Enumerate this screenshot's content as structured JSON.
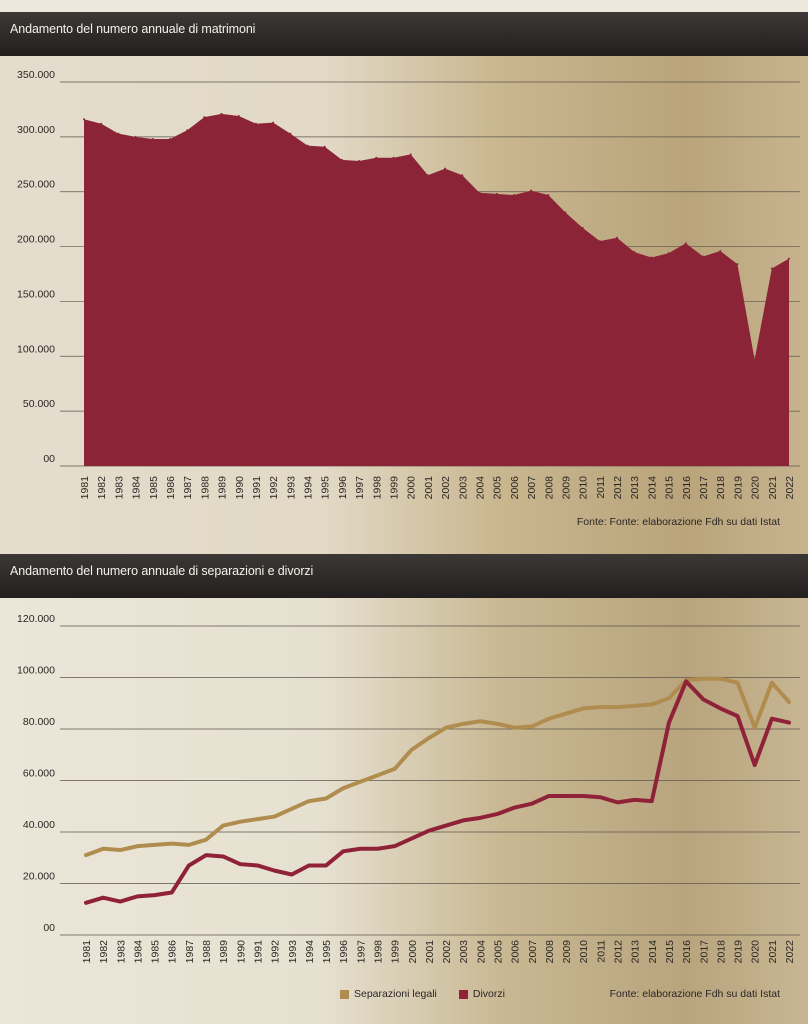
{
  "chart1": {
    "header": "Andamento del numero annuale di matrimoni",
    "source": "Fonte: Fonte: elaborazione Fdh su dati Istat",
    "chart_data": {
      "type": "area",
      "title": "Andamento del numero annuale di matrimoni",
      "x": [
        "1981",
        "1982",
        "1983",
        "1984",
        "1985",
        "1986",
        "1987",
        "1988",
        "1989",
        "1990",
        "1991",
        "1992",
        "1993",
        "1994",
        "1995",
        "1996",
        "1997",
        "1998",
        "1999",
        "2000",
        "2001",
        "2002",
        "2003",
        "2004",
        "2005",
        "2006",
        "2007",
        "2008",
        "2009",
        "2010",
        "2011",
        "2012",
        "2013",
        "2014",
        "2015",
        "2016",
        "2017",
        "2018",
        "2019",
        "2020",
        "2021",
        "2022"
      ],
      "yticks": [
        "350.000",
        "300.000",
        "250.000",
        "200.000",
        "150.000",
        "100.000",
        "50.000",
        "00"
      ],
      "ylim": [
        0,
        350000
      ],
      "grid": true,
      "color": "#8b2436",
      "series": [
        {
          "values": [
            316000,
            312000,
            303000,
            300000,
            298000,
            298000,
            306000,
            318000,
            321000,
            319000,
            312000,
            313000,
            303000,
            292000,
            291000,
            279000,
            278000,
            281000,
            281000,
            284000,
            265000,
            271000,
            265000,
            249000,
            248000,
            247000,
            251000,
            247000,
            231000,
            217000,
            205000,
            208000,
            195000,
            190000,
            194000,
            203000,
            191000,
            196000,
            184000,
            97000,
            180000,
            189000
          ]
        }
      ]
    }
  },
  "chart2": {
    "header": "Andamento del numero annuale di separazioni e divorzi",
    "source": "Fonte: elaborazione Fdh su dati Istat",
    "chart_data": {
      "type": "line",
      "title": "Andamento del numero annuale di separazioni e divorzi",
      "x": [
        "1981",
        "1982",
        "1983",
        "1984",
        "1985",
        "1986",
        "1987",
        "1988",
        "1989",
        "1990",
        "1991",
        "1992",
        "1993",
        "1994",
        "1995",
        "1996",
        "1997",
        "1998",
        "1999",
        "2000",
        "2001",
        "2002",
        "2003",
        "2004",
        "2005",
        "2006",
        "2007",
        "2008",
        "2009",
        "2010",
        "2011",
        "2012",
        "2013",
        "2014",
        "2015",
        "2016",
        "2017",
        "2018",
        "2019",
        "2020",
        "2021",
        "2022"
      ],
      "yticks": [
        "120.000",
        "100.000",
        "80.000",
        "60.000",
        "40.000",
        "20.000",
        "00"
      ],
      "ylim": [
        0,
        120000
      ],
      "grid": true,
      "legend": "bottom",
      "series": [
        {
          "name": "Separazioni legali",
          "color": "#b08d4e",
          "values": [
            31000,
            33500,
            33000,
            34500,
            35000,
            35500,
            35000,
            37000,
            42500,
            44000,
            45000,
            46000,
            49000,
            52000,
            53000,
            57000,
            59500,
            62000,
            64500,
            72000,
            76500,
            80500,
            82000,
            83000,
            82000,
            80500,
            81000,
            84000,
            86000,
            88000,
            88500,
            88500,
            89000,
            89500,
            92000,
            99000,
            99500,
            99500,
            98000,
            80500,
            98000,
            90500
          ]
        },
        {
          "name": "Divorzi",
          "color": "#8f2238",
          "values": [
            12500,
            14500,
            13000,
            15000,
            15500,
            16500,
            27000,
            31000,
            30500,
            27500,
            27000,
            25000,
            23500,
            27000,
            27000,
            32500,
            33500,
            33500,
            34500,
            37500,
            40500,
            42500,
            44500,
            45500,
            47000,
            49500,
            51000,
            54000,
            54000,
            54000,
            53500,
            51500,
            52500,
            52000,
            82500,
            98500,
            91500,
            88000,
            85000,
            66000,
            84000,
            82500
          ]
        }
      ]
    }
  }
}
